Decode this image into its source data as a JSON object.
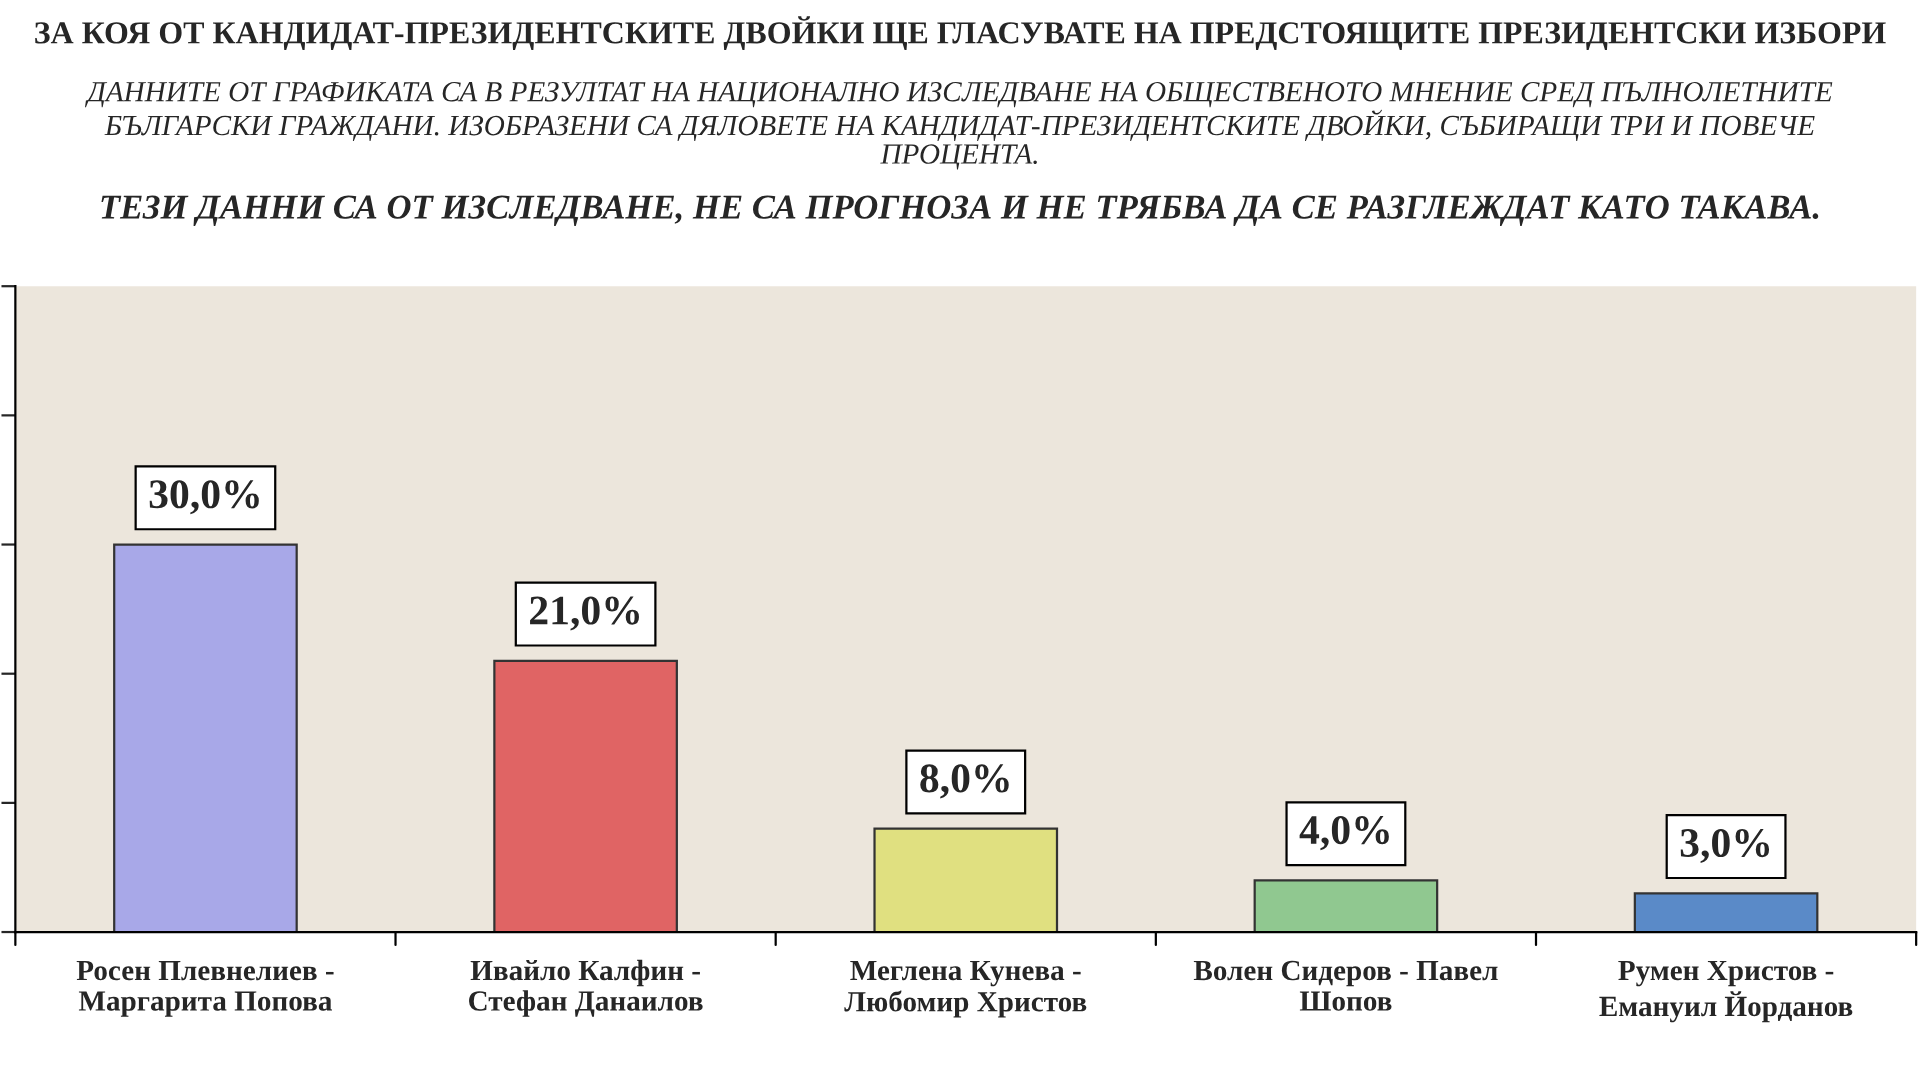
{
  "chart_data": {
    "type": "bar",
    "title": "ЗА КОЯ ОТ КАНДИДАТ-ПРЕЗИДЕНТСКИТЕ ДВОЙКИ ЩЕ ГЛАСУВАТЕ НА ПРЕДСТОЯЩИТЕ ПРЕЗИДЕНТСКИ ИЗБОРИ",
    "subtitle": "ДАННИТЕ ОТ ГРАФИКАТА СА В РЕЗУЛТАТ НА НАЦИОНАЛНО ИЗСЛЕДВАНЕ НА ОБЩЕСТВЕНОТО МНЕНИЕ СРЕД ПЪЛНОЛЕТНИТЕ\nБЪЛГАРСКИ ГРАЖДАНИ. ИЗОБРАЗЕНИ СА ДЯЛОВЕТЕ НА КАНДИДАТ-ПРЕЗИДЕНТСКИТЕ ДВОЙКИ, СЪБИРАЩИ ТРИ И ПОВЕЧЕ\nПРОЦЕНТА.",
    "annotations": [
      "ТЕЗИ ДАННИ СА ОТ ИЗСЛЕДВАНЕ, НЕ СА ПРОГНОЗА И НЕ ТРЯБВА ДА СЕ РАЗГЛЕЖДАТ КАТО ТАКАВА."
    ],
    "categories": [
      "Росен Плевнелиев -\nМаргарита Попова",
      "Ивайло Калфин -\nСтефан Данаилов",
      "Меглена Кунева -\nЛюбомир Христов",
      "Волен Сидеров - Павел\nШопов",
      "Румен Христов -\nЕмануил Йорданов"
    ],
    "values": [
      30,
      21,
      8,
      4,
      3
    ],
    "value_labels": [
      "30,0%",
      "21,0%",
      "8,0%",
      "4,0%",
      "3,0%"
    ],
    "colors": [
      "#a8a8e8",
      "#e06464",
      "#e0e080",
      "#90c890",
      "#5a8ac8"
    ],
    "ylim": [
      0,
      50
    ],
    "yticks": [
      {
        "value": 0,
        "label": null
      },
      {
        "value": 10,
        "label": null
      },
      {
        "value": 20,
        "label": null
      },
      {
        "value": 30,
        "label": null
      },
      {
        "value": 40,
        "label": null
      },
      {
        "value": 50,
        "label": null
      }
    ],
    "tick_labels": "x",
    "grid": false,
    "legend": false
  }
}
